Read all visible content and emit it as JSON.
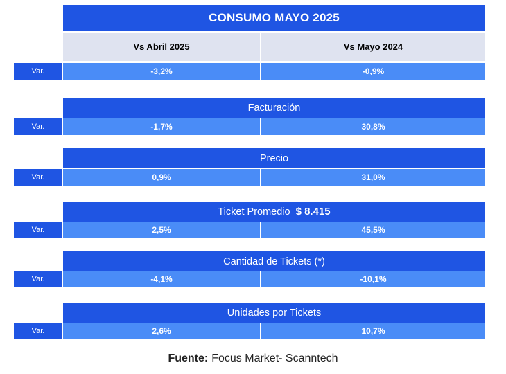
{
  "title": "CONSUMO MAYO 2025",
  "columns": [
    "Vs Abril 2025",
    "Vs Mayo 2024"
  ],
  "var_label": "Var.",
  "sections": [
    {
      "header": "",
      "values": [
        "-3,2%",
        "-0,9%"
      ]
    },
    {
      "header": "Facturación",
      "values": [
        "-1,7%",
        "30,8%"
      ]
    },
    {
      "header": "Precio",
      "values": [
        "0,9%",
        "31,0%"
      ]
    },
    {
      "header": "Ticket Promedio",
      "amount": "$ 8.415",
      "values": [
        "2,5%",
        "45,5%"
      ]
    },
    {
      "header": "Cantidad de Tickets (*)",
      "values": [
        "-4,1%",
        "-10,1%"
      ]
    },
    {
      "header": "Unidades por Tickets",
      "values": [
        "2,6%",
        "10,7%"
      ]
    }
  ],
  "footer": {
    "label": "Fuente:",
    "text": "Focus Market- Scanntech"
  },
  "colors": {
    "primary": "#1f55e3",
    "cell": "#4a8cf7",
    "subheader": "#dfe3f0"
  }
}
